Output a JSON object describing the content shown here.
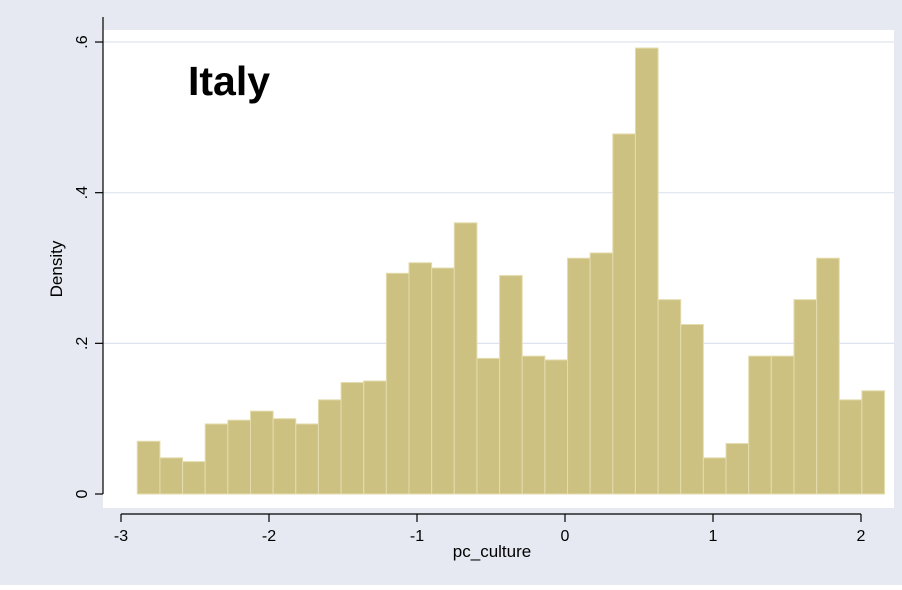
{
  "chart_data": {
    "type": "bar",
    "title": "Italy",
    "xlabel": "pc_culture",
    "ylabel": "Density",
    "xlim": [
      -3.1,
      2.25
    ],
    "ylim": [
      0,
      0.62
    ],
    "xticks": [
      -3,
      -2,
      -1,
      0,
      1,
      2
    ],
    "xtick_labels": [
      "-3",
      "-2",
      "-1",
      "0",
      "1",
      "2"
    ],
    "yticks": [
      0,
      0.2,
      0.4,
      0.6
    ],
    "ytick_labels": [
      "0",
      ".2",
      ".4",
      ".6"
    ],
    "grid": true,
    "bin_start": -2.89,
    "bin_width": 0.153,
    "values": [
      0.07,
      0.048,
      0.043,
      0.093,
      0.098,
      0.11,
      0.1,
      0.093,
      0.125,
      0.148,
      0.15,
      0.293,
      0.307,
      0.3,
      0.36,
      0.18,
      0.29,
      0.183,
      0.178,
      0.313,
      0.32,
      0.478,
      0.592,
      0.258,
      0.225,
      0.048,
      0.067,
      0.183,
      0.183,
      0.258,
      0.313,
      0.125,
      0.137
    ],
    "colors": {
      "bar_fill": "#cdc182",
      "bar_stroke": "#e4dcae",
      "plot_bg": "#ffffff",
      "outer_bg": "#e6e9f1",
      "grid": "#dde4ef",
      "axis": "#000000",
      "title": "#000000"
    }
  }
}
